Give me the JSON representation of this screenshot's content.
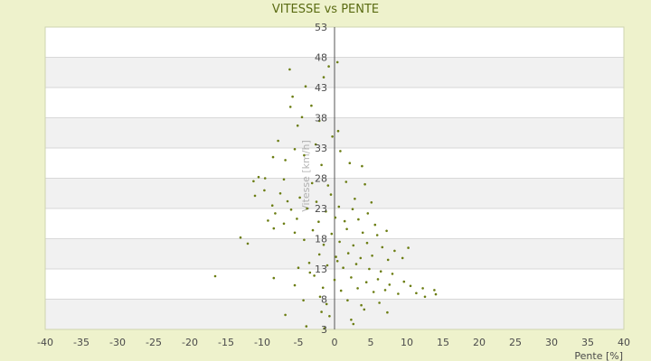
{
  "chart_data": {
    "type": "scatter",
    "title": "VITESSE vs PENTE",
    "xlabel": "Pente [%]",
    "ylabel": "Vitesse [km/h]",
    "xlim": [
      -40,
      40
    ],
    "ylim": [
      3,
      53
    ],
    "x_ticks": [
      "-40",
      "-35",
      "-30",
      "-25",
      "-20",
      "-15",
      "-10",
      "-5",
      "0",
      "5",
      "10",
      "15",
      "20",
      "25",
      "30",
      "35",
      "40"
    ],
    "y_ticks": [
      "53",
      "48",
      "43",
      "38",
      "33",
      "28",
      "23",
      "18",
      "13",
      "8",
      "3"
    ],
    "grid": true,
    "colors": {
      "background": "#eef2cc",
      "band": "#f1f1f1",
      "plot": "#ffffff",
      "marker": "#6b7d12"
    },
    "points": [
      [
        -6.2,
        46.0
      ],
      [
        -0.8,
        46.5
      ],
      [
        -1.5,
        44.7
      ],
      [
        0.4,
        47.2
      ],
      [
        -4.0,
        43.2
      ],
      [
        -3.2,
        40.0
      ],
      [
        -5.8,
        41.5
      ],
      [
        -6.1,
        39.8
      ],
      [
        -4.5,
        38.1
      ],
      [
        -2.1,
        37.5
      ],
      [
        -5.1,
        36.7
      ],
      [
        -0.3,
        34.9
      ],
      [
        0.5,
        35.8
      ],
      [
        -2.6,
        33.6
      ],
      [
        -7.8,
        34.2
      ],
      [
        -5.5,
        32.8
      ],
      [
        -8.5,
        31.5
      ],
      [
        -6.8,
        31.0
      ],
      [
        -4.2,
        31.8
      ],
      [
        -1.8,
        30.2
      ],
      [
        0.8,
        32.5
      ],
      [
        2.1,
        30.5
      ],
      [
        3.8,
        30.0
      ],
      [
        -10.5,
        28.2
      ],
      [
        -9.6,
        28.0
      ],
      [
        -11.2,
        27.5
      ],
      [
        -7.0,
        27.8
      ],
      [
        -3.1,
        27.2
      ],
      [
        -0.9,
        26.8
      ],
      [
        1.6,
        27.4
      ],
      [
        4.2,
        27.0
      ],
      [
        -9.7,
        26.0
      ],
      [
        -11.0,
        25.1
      ],
      [
        -7.5,
        25.5
      ],
      [
        -6.5,
        24.2
      ],
      [
        -4.8,
        24.8
      ],
      [
        -2.5,
        24.1
      ],
      [
        -0.5,
        25.3
      ],
      [
        2.8,
        24.6
      ],
      [
        5.1,
        24.0
      ],
      [
        -8.6,
        23.5
      ],
      [
        -8.2,
        22.2
      ],
      [
        -6.0,
        22.8
      ],
      [
        -3.8,
        23.0
      ],
      [
        -1.2,
        22.5
      ],
      [
        0.6,
        23.3
      ],
      [
        2.5,
        22.9
      ],
      [
        4.6,
        22.2
      ],
      [
        -9.2,
        21.0
      ],
      [
        -7.0,
        20.5
      ],
      [
        -5.2,
        21.3
      ],
      [
        -2.2,
        20.8
      ],
      [
        0.1,
        21.5
      ],
      [
        1.4,
        20.9
      ],
      [
        3.3,
        21.2
      ],
      [
        5.6,
        20.3
      ],
      [
        -8.4,
        19.7
      ],
      [
        -5.5,
        19.0
      ],
      [
        -3.0,
        19.4
      ],
      [
        -0.4,
        18.8
      ],
      [
        1.7,
        19.6
      ],
      [
        3.9,
        19.0
      ],
      [
        5.9,
        18.6
      ],
      [
        7.2,
        19.3
      ],
      [
        -13.0,
        18.2
      ],
      [
        -12.0,
        17.2
      ],
      [
        -4.2,
        17.8
      ],
      [
        -1.5,
        17.0
      ],
      [
        0.7,
        17.5
      ],
      [
        2.6,
        16.9
      ],
      [
        4.5,
        17.3
      ],
      [
        6.6,
        16.6
      ],
      [
        8.3,
        16.0
      ],
      [
        10.2,
        16.5
      ],
      [
        -2.1,
        15.4
      ],
      [
        0.2,
        15.0
      ],
      [
        1.9,
        15.6
      ],
      [
        3.6,
        14.8
      ],
      [
        5.2,
        15.2
      ],
      [
        7.4,
        14.5
      ],
      [
        9.4,
        14.8
      ],
      [
        -3.5,
        14.0
      ],
      [
        -1.0,
        13.6
      ],
      [
        1.2,
        13.2
      ],
      [
        3.0,
        13.8
      ],
      [
        4.8,
        13.0
      ],
      [
        6.4,
        12.6
      ],
      [
        8.0,
        12.2
      ],
      [
        -16.5,
        11.8
      ],
      [
        -8.4,
        11.5
      ],
      [
        -2.8,
        11.9
      ],
      [
        0.0,
        11.2
      ],
      [
        2.3,
        11.6
      ],
      [
        4.4,
        10.8
      ],
      [
        6.0,
        11.3
      ],
      [
        7.6,
        10.4
      ],
      [
        9.6,
        10.9
      ],
      [
        10.5,
        10.2
      ],
      [
        12.2,
        9.8
      ],
      [
        13.8,
        9.5
      ],
      [
        -5.5,
        10.3
      ],
      [
        -1.6,
        9.9
      ],
      [
        0.9,
        9.4
      ],
      [
        3.2,
        9.8
      ],
      [
        5.4,
        9.2
      ],
      [
        7.0,
        9.5
      ],
      [
        8.8,
        8.9
      ],
      [
        11.3,
        9.0
      ],
      [
        12.5,
        8.4
      ],
      [
        14.0,
        8.8
      ],
      [
        -2.0,
        8.4
      ],
      [
        -4.3,
        7.8
      ],
      [
        -1.1,
        7.2
      ],
      [
        1.8,
        7.8
      ],
      [
        3.7,
        7.0
      ],
      [
        6.2,
        7.4
      ],
      [
        -6.8,
        5.4
      ],
      [
        -1.8,
        5.9
      ],
      [
        -0.7,
        5.2
      ],
      [
        2.3,
        4.6
      ],
      [
        2.6,
        3.9
      ],
      [
        -3.9,
        3.5
      ],
      [
        -1.4,
        3.2
      ],
      [
        7.3,
        5.8
      ],
      [
        4.1,
        6.3
      ],
      [
        -5.0,
        13.2
      ],
      [
        -3.4,
        12.4
      ],
      [
        0.4,
        14.3
      ]
    ]
  }
}
